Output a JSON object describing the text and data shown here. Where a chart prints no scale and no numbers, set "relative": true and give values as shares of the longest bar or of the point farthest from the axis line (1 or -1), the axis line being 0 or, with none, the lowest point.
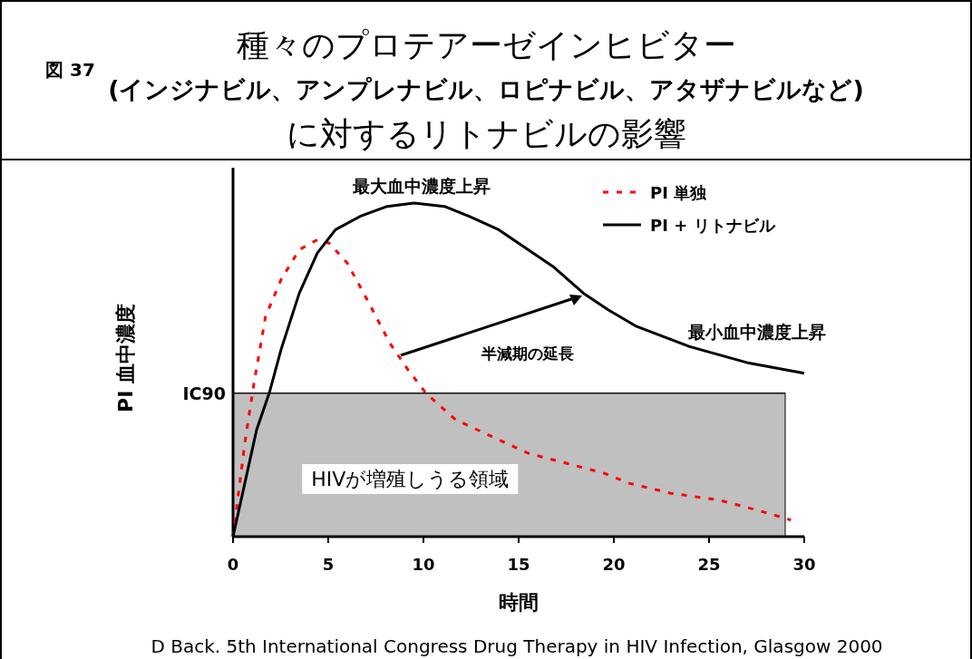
{
  "chart_data": {
    "type": "line",
    "title": "種々のプロテアーゼインヒビター\n(インジナビル、アンプレナビル、ロピナビル、アタザナビルなど)\nに対するリトナビルの影響",
    "xlabel": "時間",
    "ylabel": "PI 血中濃度",
    "relative": true,
    "xlim": [
      0,
      30
    ],
    "xticks": [
      0,
      5,
      10,
      15,
      20,
      25,
      30
    ],
    "legend": "top right",
    "series": [
      {
        "name": "PI 単独",
        "color": "#ff0000",
        "line_style": "dotted",
        "x": [
          0,
          0.62,
          1.1,
          1.71,
          2.52,
          3.48,
          4.43,
          5.05,
          6.0,
          7.14,
          8.24,
          9.19,
          10.14,
          11.7,
          13.6,
          15.5,
          17.5,
          19.5,
          20.8,
          23,
          25.5,
          27.5,
          29.3
        ],
        "values": [
          0,
          0.28,
          0.46,
          0.66,
          0.77,
          0.86,
          0.89,
          0.88,
          0.82,
          0.7,
          0.58,
          0.5,
          0.43,
          0.35,
          0.3,
          0.25,
          0.22,
          0.19,
          0.16,
          0.13,
          0.11,
          0.08,
          0.05
        ]
      },
      {
        "name": "PI + リトナビル",
        "color": "#000000",
        "line_style": "solid",
        "x": [
          0,
          1.24,
          1.9,
          2.52,
          3.48,
          4.43,
          5.38,
          6.67,
          8.1,
          9.5,
          11.1,
          12.4,
          13.95,
          15.5,
          16.8,
          18.4,
          19.7,
          21.2,
          23.95,
          27.1,
          30
        ],
        "values": [
          0,
          0.32,
          0.43,
          0.56,
          0.73,
          0.85,
          0.92,
          0.96,
          0.99,
          1.0,
          0.99,
          0.96,
          0.92,
          0.86,
          0.81,
          0.73,
          0.68,
          0.63,
          0.57,
          0.52,
          0.49
        ]
      }
    ],
    "ref_lines": [
      {
        "axis": "y",
        "value": 0.43,
        "label": "IC90",
        "color": "#000000"
      }
    ],
    "bands": [
      {
        "axis": "y",
        "from": 0,
        "to": 0.43,
        "label": "HIVが増殖しうる領域",
        "color": "#c0c0c0"
      }
    ],
    "annotations": [
      "図 37",
      {
        "text": "最大血中濃度上昇",
        "x": 9.9,
        "y": 1.0
      },
      {
        "text": "最小血中濃度上昇",
        "x": 28,
        "y": 0.52
      },
      "半減期の延長",
      "D Back. 5th International Congress Drug Therapy in HIV Infection, Glasgow 2000"
    ]
  }
}
